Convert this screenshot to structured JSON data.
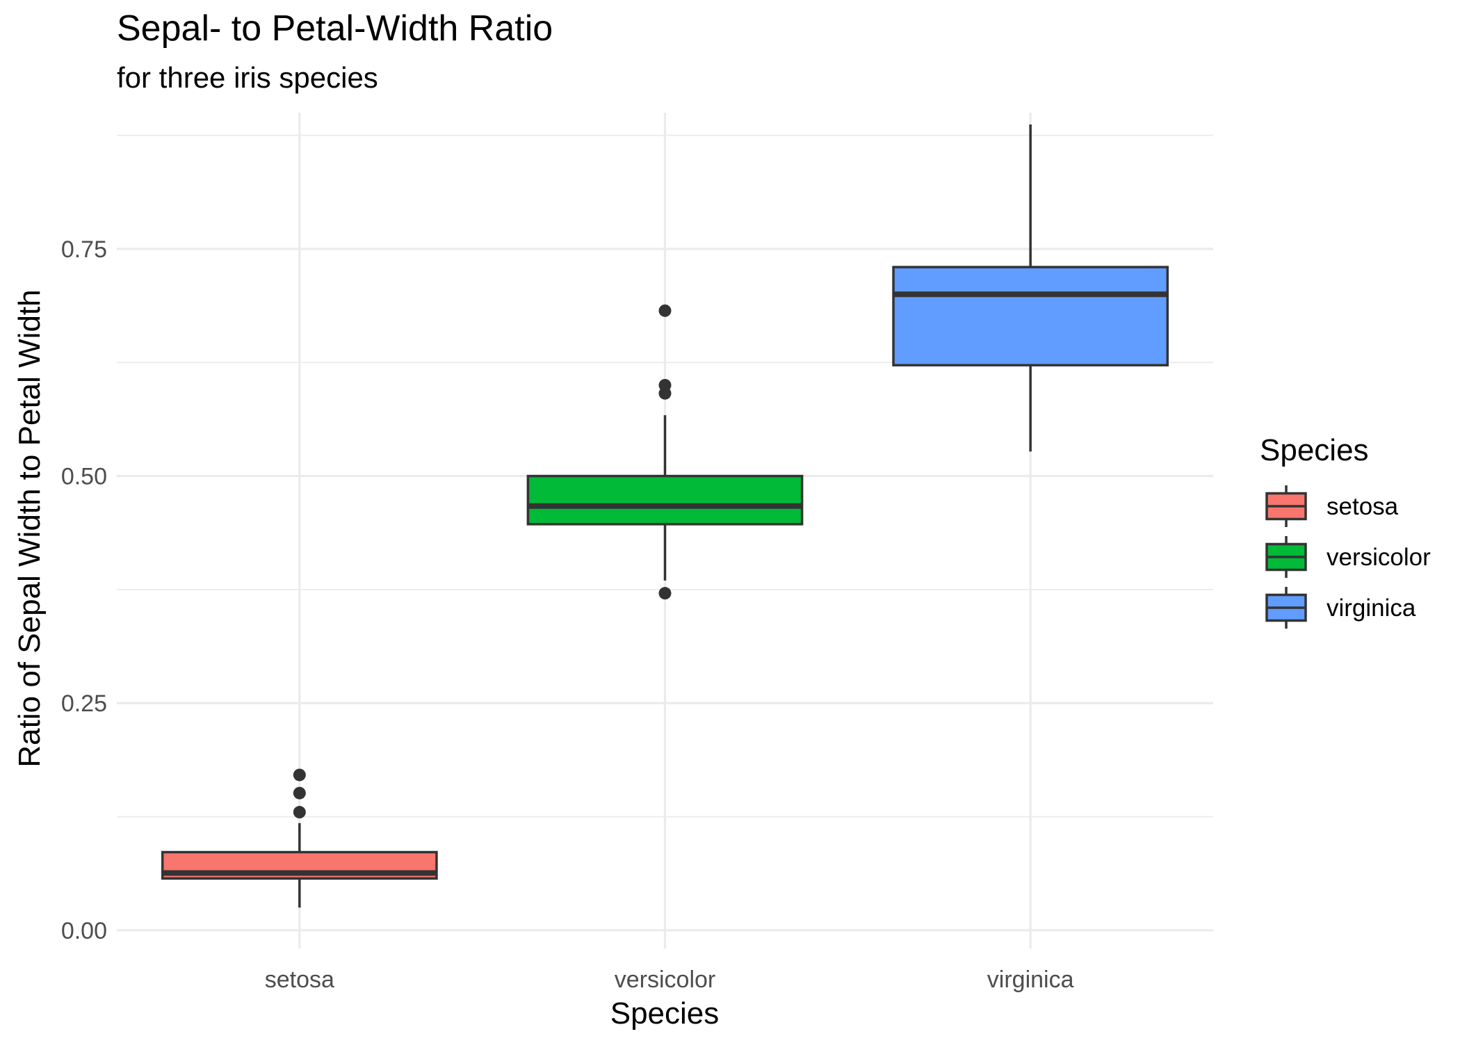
{
  "chart_data": {
    "type": "boxplot",
    "title": "Sepal- to Petal-Width Ratio",
    "subtitle": "for three iris species",
    "xlabel": "Species",
    "ylabel": "Ratio of Sepal Width to Petal Width",
    "categories": [
      "setosa",
      "versicolor",
      "virginica"
    ],
    "ylim": [
      -0.02,
      0.9
    ],
    "yticks": [
      0.0,
      0.25,
      0.5,
      0.75
    ],
    "ytick_labels": [
      "0.00",
      "0.25",
      "0.50",
      "0.75"
    ],
    "grid": true,
    "legend": {
      "title": "Species",
      "position": "right",
      "entries": [
        "setosa",
        "versicolor",
        "virginica"
      ]
    },
    "series": [
      {
        "category": "setosa",
        "color": "#F8766D",
        "q1": 0.057,
        "median": 0.063,
        "q3": 0.086,
        "whisker_low": 0.025,
        "whisker_high": 0.118,
        "outliers": [
          0.13,
          0.151,
          0.171
        ]
      },
      {
        "category": "versicolor",
        "color": "#00BA38",
        "q1": 0.447,
        "median": 0.467,
        "q3": 0.5,
        "whisker_low": 0.385,
        "whisker_high": 0.567,
        "outliers": [
          0.371,
          0.591,
          0.6,
          0.682
        ]
      },
      {
        "category": "virginica",
        "color": "#619CFF",
        "q1": 0.622,
        "median": 0.7,
        "q3": 0.73,
        "whisker_low": 0.527,
        "whisker_high": 0.887,
        "outliers": []
      }
    ]
  }
}
